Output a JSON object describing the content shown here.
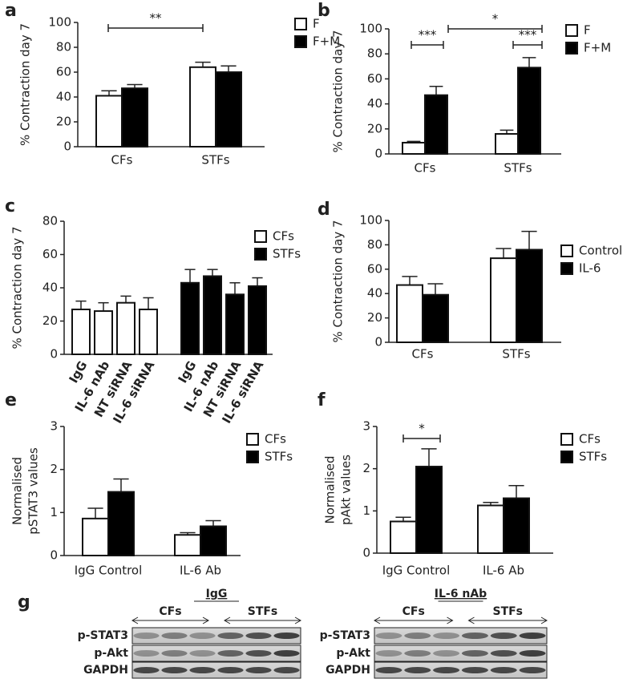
{
  "chart_data": [
    {
      "type": "bar",
      "label": "a",
      "ylabel": "% Contraction day 7",
      "categories": [
        "CFs",
        "STFs"
      ],
      "series": [
        {
          "name": "F",
          "color": "#ffffff",
          "values": [
            41,
            64
          ],
          "errors": [
            4,
            4
          ]
        },
        {
          "name": "F+M",
          "color": "#000000",
          "values": [
            47,
            60
          ],
          "errors": [
            3,
            5
          ]
        }
      ],
      "ylim": [
        0,
        100
      ],
      "yticks": [
        0,
        20,
        40,
        60,
        80,
        100
      ],
      "annotations": [
        "**"
      ]
    },
    {
      "type": "bar",
      "label": "b",
      "ylabel": "% Contraction day 7",
      "categories": [
        "CFs",
        "STFs"
      ],
      "series": [
        {
          "name": "F",
          "color": "#ffffff",
          "values": [
            9,
            16
          ],
          "errors": [
            1,
            3
          ]
        },
        {
          "name": "F+M",
          "color": "#000000",
          "values": [
            47,
            69
          ],
          "errors": [
            7,
            8
          ]
        }
      ],
      "ylim": [
        0,
        100
      ],
      "yticks": [
        0,
        20,
        40,
        60,
        80,
        100
      ],
      "annotations": [
        "***",
        "***",
        "*"
      ]
    },
    {
      "type": "bar",
      "label": "c",
      "ylabel": "% Contraction day 7",
      "categories": [
        "IgG",
        "IL-6 nAb",
        "NT siRNA",
        "IL-6 siRNA",
        "IgG",
        "IL-6 nAb",
        "NT siRNA",
        "IL-6 siRNA"
      ],
      "series": [
        {
          "name": "CFs",
          "color": "#ffffff",
          "values": [
            27,
            26,
            31,
            27,
            null,
            null,
            null,
            null
          ],
          "errors": [
            5,
            5,
            4,
            7,
            null,
            null,
            null,
            null
          ]
        },
        {
          "name": "STFs",
          "color": "#000000",
          "values": [
            null,
            null,
            null,
            null,
            43,
            47,
            36,
            41
          ],
          "errors": [
            null,
            null,
            null,
            null,
            8,
            4,
            7,
            5
          ]
        }
      ],
      "ylim": [
        0,
        80
      ],
      "yticks": [
        0,
        20,
        40,
        60,
        80
      ],
      "annotations": []
    },
    {
      "type": "bar",
      "label": "d",
      "ylabel": "% Contraction day 7",
      "categories": [
        "CFs",
        "STFs"
      ],
      "series": [
        {
          "name": "Control",
          "color": "#ffffff",
          "values": [
            47,
            69
          ],
          "errors": [
            7,
            8
          ]
        },
        {
          "name": "IL-6",
          "color": "#000000",
          "values": [
            39,
            76
          ],
          "errors": [
            9,
            15
          ]
        }
      ],
      "ylim": [
        0,
        100
      ],
      "yticks": [
        0,
        20,
        40,
        60,
        80,
        100
      ],
      "annotations": []
    },
    {
      "type": "bar",
      "label": "e",
      "ylabel": [
        "Normalised",
        "pSTAT3 values"
      ],
      "categories": [
        "IgG Control",
        "IL-6 Ab"
      ],
      "series": [
        {
          "name": "CFs",
          "color": "#ffffff",
          "values": [
            0.86,
            0.48
          ],
          "errors": [
            0.24,
            0.05
          ]
        },
        {
          "name": "STFs",
          "color": "#000000",
          "values": [
            1.48,
            0.68
          ],
          "errors": [
            0.3,
            0.13
          ]
        }
      ],
      "ylim": [
        0,
        3
      ],
      "yticks": [
        0,
        1,
        2,
        3
      ],
      "annotations": []
    },
    {
      "type": "bar",
      "label": "f",
      "ylabel": [
        "Normalised",
        "pAkt values"
      ],
      "categories": [
        "IgG Control",
        "IL-6 Ab"
      ],
      "series": [
        {
          "name": "CFs",
          "color": "#ffffff",
          "values": [
            0.75,
            1.13
          ],
          "errors": [
            0.1,
            0.07
          ]
        },
        {
          "name": "STFs",
          "color": "#000000",
          "values": [
            2.05,
            1.3
          ],
          "errors": [
            0.42,
            0.3
          ]
        }
      ],
      "ylim": [
        0,
        3
      ],
      "yticks": [
        0,
        1,
        2,
        3
      ],
      "annotations": [
        "*"
      ]
    }
  ],
  "blots": {
    "label": "g",
    "panels": [
      {
        "title": "IgG",
        "groups": [
          "CFs",
          "STFs"
        ],
        "rows": [
          "p-STAT3",
          "p-Akt",
          "GAPDH"
        ]
      },
      {
        "title": "IL-6 nAb",
        "groups": [
          "CFs",
          "STFs"
        ],
        "rows": [
          "p-STAT3",
          "p-Akt",
          "GAPDH"
        ]
      }
    ]
  }
}
